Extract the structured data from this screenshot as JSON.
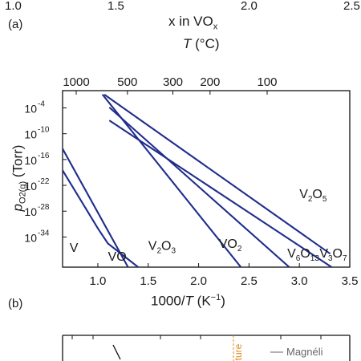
{
  "figure": {
    "panel_a_label": "(a)",
    "panel_b_label": "(b)",
    "top_strip": {
      "ticks": [
        "1.0",
        "1.5",
        "2.0",
        "2.5"
      ],
      "axis_label_prefix": "x in VO",
      "axis_label_sub": "x"
    },
    "panel_b_fragment": {
      "legend_label": "Magnéli",
      "rotated_label": "ture",
      "colors": {
        "legend_line": "#888888",
        "rotated_label": "#e08a1c",
        "dashed_line": "#e08a1c"
      }
    }
  },
  "chart_data": {
    "type": "line",
    "xlabel_prefix": "1000/",
    "xlabel_italic": "T",
    "xlabel_unit": " (K",
    "xlabel_unit_sup": "−1",
    "xlabel_unit_close": ")",
    "top_axis_label_italic": "T",
    "top_axis_label_rest": " (°C)",
    "ylabel_italic": "p",
    "ylabel_sub": "O2(g)",
    "ylabel_unit": " (Torr)",
    "xlim": [
      0.65,
      3.5
    ],
    "ylim": [
      -41,
      0
    ],
    "x_ticks": [
      1.0,
      1.5,
      2.0,
      2.5,
      3.0,
      3.5
    ],
    "x_tick_labels": [
      "1.0",
      "1.5",
      "2.0",
      "2.5",
      "3.0",
      "3.5"
    ],
    "y_ticks": [
      -4,
      -10,
      -16,
      -22,
      -28,
      -34
    ],
    "y_tick_labels": [
      "-4",
      "-10",
      "-16",
      "-22",
      "-28",
      "-34"
    ],
    "y_tick_base": "10",
    "top_ticks_celsius": [
      1000,
      500,
      300,
      200,
      100
    ],
    "top_tick_labels": [
      "1000",
      "500",
      "300",
      "200",
      "100"
    ],
    "line_color": "#1f2d8c",
    "series": [
      {
        "points": [
          [
            0.65,
            -13.5
          ],
          [
            1.3,
            -41
          ]
        ]
      },
      {
        "points": [
          [
            0.65,
            -18.5
          ],
          [
            1.0,
            -32
          ],
          [
            1.1,
            -35.5
          ],
          [
            1.4,
            -41
          ]
        ]
      },
      {
        "points": [
          [
            1.05,
            -1
          ],
          [
            2.42,
            -41
          ]
        ]
      },
      {
        "points": [
          [
            1.12,
            -4
          ],
          [
            2.9,
            -41
          ]
        ]
      },
      {
        "points": [
          [
            1.12,
            -7
          ],
          [
            3.32,
            -41
          ]
        ]
      },
      {
        "points": [
          [
            1.07,
            -1
          ],
          [
            3.3,
            -37.8
          ]
        ]
      }
    ],
    "region_labels": [
      {
        "base": "V",
        "sub": [],
        "x": 0.72,
        "y": -37.5
      },
      {
        "base": "VO",
        "sub": [],
        "x": 1.1,
        "y": -39.5
      },
      {
        "base": "V",
        "sub": [
          "2",
          "O",
          "3"
        ],
        "x": 1.5,
        "y": -37
      },
      {
        "base": "VO",
        "sub": [
          "2"
        ],
        "x": 2.2,
        "y": -36.5
      },
      {
        "base": "V",
        "sub": [
          "6",
          "O",
          "13"
        ],
        "x": 2.88,
        "y": -38.8
      },
      {
        "base": "V",
        "sub": [
          "3",
          "O",
          "7"
        ],
        "x": 3.2,
        "y": -38.8
      },
      {
        "base": "V",
        "sub": [
          "2",
          "O",
          "5"
        ],
        "x": 3.0,
        "y": -25
      }
    ]
  }
}
